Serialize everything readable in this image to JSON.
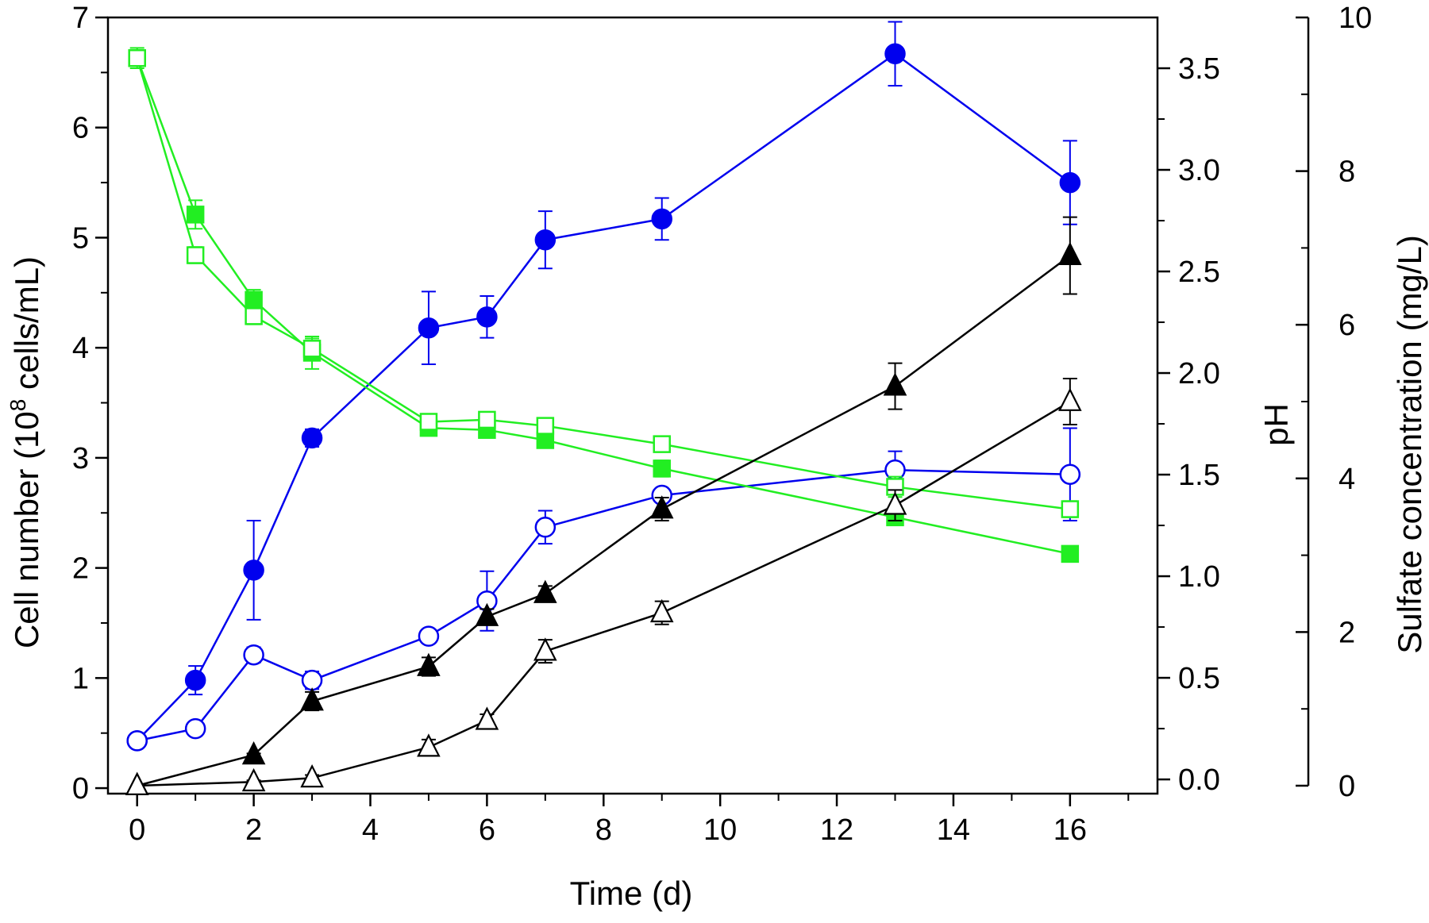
{
  "chart_data": {
    "type": "line",
    "title": "",
    "xlabel": "Time (d)",
    "ylabels": {
      "left_prefix": "Cell number (10",
      "left_exp": "8",
      "left_suffix": " cells/mL)",
      "ph": "pH",
      "sulfate": "Sulfate concentration (mg/L)"
    },
    "axes": {
      "x": {
        "range": [
          -0.5,
          17.5
        ],
        "ticks": [
          0,
          2,
          4,
          6,
          8,
          10,
          12,
          14,
          16
        ]
      },
      "cell": {
        "range": [
          -0.05,
          7
        ],
        "ticks": [
          0,
          1,
          2,
          3,
          4,
          5,
          6,
          7
        ]
      },
      "ph": {
        "range": [
          -0.07,
          3.75
        ],
        "ticks": [
          0.0,
          0.5,
          1.0,
          1.5,
          2.0,
          2.5,
          3.0,
          3.5
        ]
      },
      "sulfate": {
        "range": [
          0,
          10
        ],
        "ticks": [
          0,
          2,
          4,
          6,
          8,
          10
        ]
      }
    },
    "tick_labels": {
      "x": [
        "0",
        "2",
        "4",
        "6",
        "8",
        "10",
        "12",
        "14",
        "16"
      ],
      "cell": [
        "0",
        "1",
        "2",
        "3",
        "4",
        "5",
        "6",
        "7"
      ],
      "ph": [
        "0.0",
        "0.5",
        "1.0",
        "1.5",
        "2.0",
        "2.5",
        "3.0",
        "3.5"
      ],
      "sulfate": [
        "0",
        "2",
        "4",
        "6",
        "8",
        "10"
      ]
    },
    "series": [
      {
        "name": "cell-number-filled",
        "axis": "cell",
        "marker": "circle",
        "filled": true,
        "color": "#0000ee",
        "points": [
          [
            0,
            0.43
          ],
          [
            1,
            0.98
          ],
          [
            2,
            1.98
          ],
          [
            3,
            3.18
          ],
          [
            5,
            4.18
          ],
          [
            6,
            4.28
          ],
          [
            7,
            4.98
          ],
          [
            9,
            5.17
          ],
          [
            13,
            6.67
          ],
          [
            16,
            5.5
          ]
        ],
        "errors": [
          0.03,
          0.13,
          0.45,
          0.08,
          0.33,
          0.19,
          0.26,
          0.19,
          0.29,
          0.38
        ]
      },
      {
        "name": "cell-number-open",
        "axis": "cell",
        "marker": "circle",
        "filled": false,
        "color": "#0000ee",
        "points": [
          [
            0,
            0.43
          ],
          [
            1,
            0.54
          ],
          [
            2,
            1.21
          ],
          [
            3,
            0.98
          ],
          [
            5,
            1.38
          ],
          [
            6,
            1.7
          ],
          [
            7,
            2.37
          ],
          [
            9,
            2.66
          ],
          [
            13,
            2.89
          ],
          [
            16,
            2.85
          ]
        ],
        "errors": [
          0.02,
          0.06,
          0.07,
          0.08,
          0.06,
          0.27,
          0.15,
          0.06,
          0.17,
          0.42
        ]
      },
      {
        "name": "ph-filled",
        "axis": "ph",
        "marker": "square",
        "filled": true,
        "color": "#22ee22",
        "points": [
          [
            0,
            3.55
          ],
          [
            1,
            2.78
          ],
          [
            2,
            2.36
          ],
          [
            3,
            2.1
          ],
          [
            5,
            1.73
          ],
          [
            6,
            1.72
          ],
          [
            7,
            1.67
          ],
          [
            9,
            1.53
          ],
          [
            13,
            1.29
          ],
          [
            16,
            1.11
          ]
        ],
        "errors": [
          0.05,
          0.07,
          0.05,
          0.08,
          0.03,
          0.03,
          0.03,
          0.04,
          0.04,
          0.02
        ]
      },
      {
        "name": "ph-open",
        "axis": "ph",
        "marker": "square",
        "filled": false,
        "color": "#22ee22",
        "points": [
          [
            0,
            3.55
          ],
          [
            1,
            2.58
          ],
          [
            2,
            2.28
          ],
          [
            3,
            2.12
          ],
          [
            5,
            1.76
          ],
          [
            6,
            1.77
          ],
          [
            7,
            1.74
          ],
          [
            9,
            1.65
          ],
          [
            13,
            1.44
          ],
          [
            16,
            1.33
          ]
        ],
        "errors": [
          0.04,
          0.04,
          0.04,
          0.05,
          0.03,
          0.03,
          0.03,
          0.03,
          0.05,
          0.04
        ]
      },
      {
        "name": "sulfate-filled",
        "axis": "sulfate",
        "marker": "triangle",
        "filled": true,
        "color": "#000000",
        "points": [
          [
            0,
            0.0
          ],
          [
            2,
            0.4
          ],
          [
            3,
            1.1
          ],
          [
            5,
            1.55
          ],
          [
            6,
            2.2
          ],
          [
            7,
            2.5
          ],
          [
            9,
            3.6
          ],
          [
            13,
            5.2
          ],
          [
            16,
            6.9
          ]
        ],
        "errors": [
          0.0,
          0.02,
          0.12,
          0.12,
          0.1,
          0.1,
          0.15,
          0.3,
          0.5
        ]
      },
      {
        "name": "sulfate-open",
        "axis": "sulfate",
        "marker": "triangle",
        "filled": false,
        "color": "#000000",
        "points": [
          [
            0,
            0.0
          ],
          [
            2,
            0.05
          ],
          [
            3,
            0.1
          ],
          [
            5,
            0.5
          ],
          [
            6,
            0.85
          ],
          [
            7,
            1.75
          ],
          [
            9,
            2.25
          ],
          [
            13,
            3.65
          ],
          [
            16,
            5.0
          ]
        ],
        "errors": [
          0.0,
          0.02,
          0.04,
          0.1,
          0.08,
          0.15,
          0.15,
          0.2,
          0.3
        ]
      }
    ]
  }
}
